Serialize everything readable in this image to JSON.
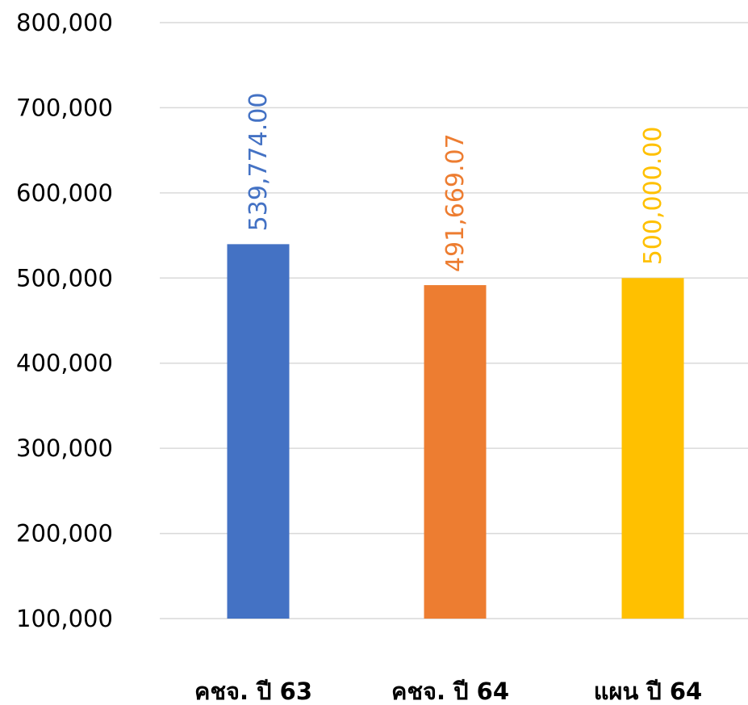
{
  "chart_data": {
    "type": "bar",
    "title": "",
    "xlabel": "",
    "ylabel": "",
    "categories": [
      "คชจ. ปี 63",
      "คชจ. ปี 64",
      "แผน ปี 64"
    ],
    "values": [
      539774.0,
      491669.07,
      500000.0
    ],
    "data_labels": [
      "539,774.00",
      "491,669.07",
      "500,000.00"
    ],
    "colors": [
      "#4472C4",
      "#ED7D31",
      "#FFC000"
    ],
    "ylim": [
      100000,
      800000
    ],
    "yticks": [
      100000,
      200000,
      300000,
      400000,
      500000,
      600000,
      700000,
      800000
    ],
    "ytick_labels": [
      "100,000",
      "200,000",
      "300,000",
      "400,000",
      "500,000",
      "600,000",
      "700,000",
      "800,000"
    ],
    "grid": true,
    "legend": "none"
  }
}
